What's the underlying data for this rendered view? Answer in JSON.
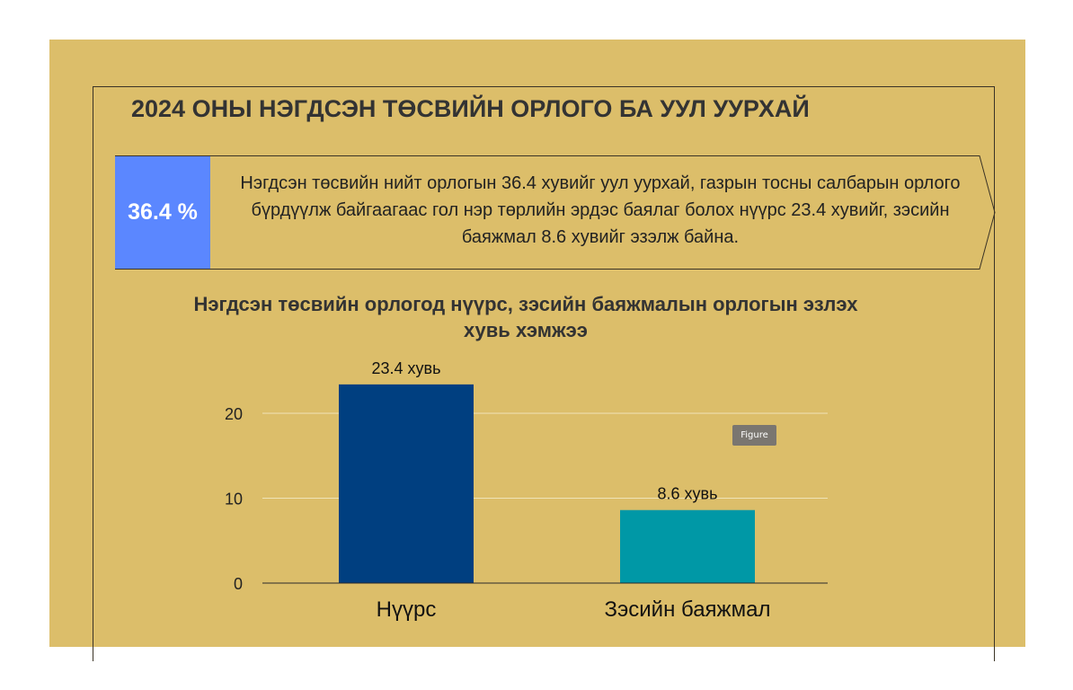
{
  "header": {
    "title": "2024 ОНЫ НЭГДСЭН ТӨСВИЙН ОРЛОГО БА УУЛ УУРХАЙ"
  },
  "callout": {
    "badge": "36.4 %",
    "text": "Нэгдсэн төсвийн нийт орлогын 36.4 хувийг уул уурхай, газрын тосны салбарын орлого бүрдүүлж байгаагаас гол нэр төрлийн эрдэс баялаг болох нүүрс 23.4 хувийг, зэсийн баяжмал 8.6 хувийг эзэлж байна."
  },
  "figure_tag": "Figure",
  "colors": {
    "background": "#dcbe6a",
    "badge": "#5b87ff",
    "coal": "#003f80",
    "copper": "#0098a6"
  },
  "chart_data": {
    "type": "bar",
    "title": "Нэгдсэн төсвийн орлогод нүүрс, зэсийн баяжмалын орлогын эзлэх хувь хэмжээ",
    "categories": [
      "Нүүрс",
      "Зэсийн баяжмал"
    ],
    "values": [
      23.4,
      8.6
    ],
    "data_labels": [
      "23.4 хувь",
      "8.6 хувь"
    ],
    "bar_colors": [
      "#003f80",
      "#0098a6"
    ],
    "yticks": [
      0,
      10,
      20
    ],
    "ylim": [
      0,
      25
    ],
    "xlabel": "",
    "ylabel": "",
    "grid": true
  }
}
